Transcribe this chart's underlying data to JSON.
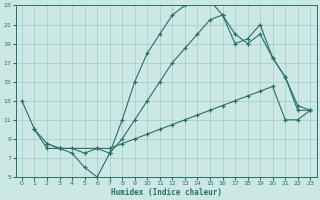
{
  "xlabel": "Humidex (Indice chaleur)",
  "ylabel": "",
  "bg_color": "#cce8e4",
  "grid_color": "#aacfca",
  "line_color": "#2a6e6a",
  "marker": "+",
  "xlim": [
    -0.5,
    23.5
  ],
  "ylim": [
    5,
    23
  ],
  "xticks": [
    0,
    1,
    2,
    3,
    4,
    5,
    6,
    7,
    8,
    9,
    10,
    11,
    12,
    13,
    14,
    15,
    16,
    17,
    18,
    19,
    20,
    21,
    22,
    23
  ],
  "yticks": [
    5,
    7,
    9,
    11,
    13,
    15,
    17,
    19,
    21,
    23
  ],
  "lines": [
    [
      [
        0,
        13
      ],
      [
        1,
        10
      ],
      [
        2,
        8
      ],
      [
        3,
        8
      ],
      [
        4,
        7.5
      ],
      [
        5,
        6
      ],
      [
        6,
        5
      ],
      [
        7,
        7.5
      ],
      [
        8,
        11
      ],
      [
        9,
        15
      ],
      [
        10,
        18
      ],
      [
        11,
        20
      ],
      [
        12,
        22
      ],
      [
        13,
        23
      ],
      [
        14,
        23.5
      ],
      [
        15,
        23.5
      ],
      [
        16,
        22
      ],
      [
        17,
        19
      ],
      [
        18,
        19.5
      ],
      [
        19,
        21
      ],
      [
        20,
        17.5
      ],
      [
        21,
        15.5
      ],
      [
        22,
        12
      ],
      [
        23,
        12
      ]
    ],
    [
      [
        1,
        10
      ],
      [
        2,
        8.5
      ],
      [
        3,
        8
      ],
      [
        4,
        8
      ],
      [
        5,
        7.5
      ],
      [
        6,
        8
      ],
      [
        7,
        8
      ],
      [
        8,
        8.5
      ],
      [
        9,
        9
      ],
      [
        10,
        9.5
      ],
      [
        11,
        10
      ],
      [
        12,
        10.5
      ],
      [
        13,
        11
      ],
      [
        14,
        11.5
      ],
      [
        15,
        12
      ],
      [
        16,
        12.5
      ],
      [
        17,
        13
      ],
      [
        18,
        13.5
      ],
      [
        19,
        14
      ],
      [
        20,
        14.5
      ],
      [
        21,
        11
      ],
      [
        22,
        11
      ],
      [
        23,
        12
      ]
    ],
    [
      [
        2,
        8.5
      ],
      [
        3,
        8
      ],
      [
        6,
        8
      ],
      [
        7,
        7.5
      ],
      [
        8,
        9
      ],
      [
        9,
        11
      ],
      [
        10,
        13
      ],
      [
        11,
        15
      ],
      [
        12,
        17
      ],
      [
        13,
        18.5
      ],
      [
        14,
        20
      ],
      [
        15,
        21.5
      ],
      [
        16,
        22
      ],
      [
        17,
        20
      ],
      [
        18,
        19
      ],
      [
        19,
        20
      ],
      [
        20,
        17.5
      ],
      [
        21,
        15.5
      ],
      [
        22,
        12.5
      ],
      [
        23,
        12
      ]
    ]
  ]
}
